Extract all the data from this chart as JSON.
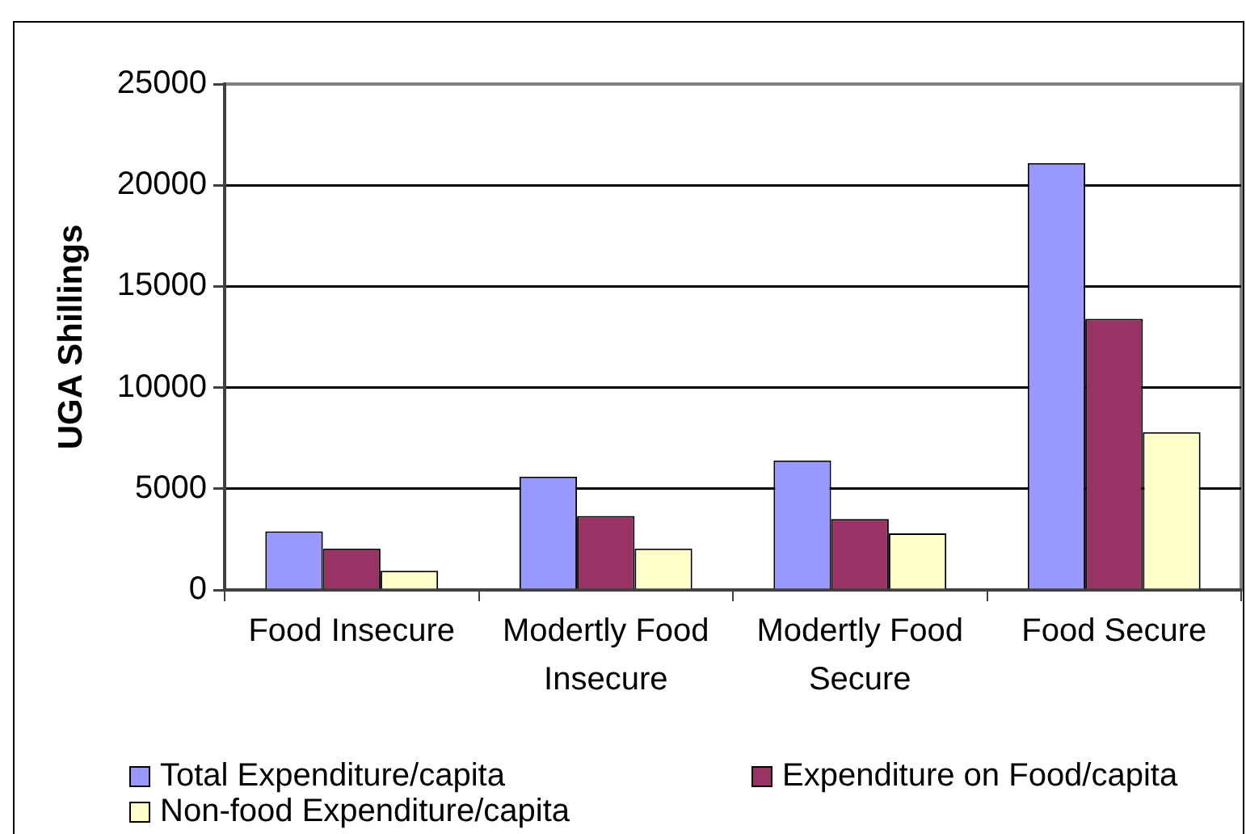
{
  "chart_data": {
    "type": "bar",
    "ylabel": "UGA Shillings",
    "categories": [
      "Food Insecure",
      "Modertly Food Insecure",
      "Modertly Food Secure",
      "Food Secure"
    ],
    "series": [
      {
        "name": "Total Expenditure/capita",
        "color": "#9999ff",
        "values": [
          2900,
          5600,
          6400,
          21100
        ]
      },
      {
        "name": "Expenditure on Food/capita",
        "color": "#993366",
        "values": [
          2050,
          3650,
          3500,
          13400
        ]
      },
      {
        "name": "Non-food Expenditure/capita",
        "color": "#ffffcc",
        "values": [
          950,
          2050,
          2800,
          7800
        ]
      }
    ],
    "ylim": [
      0,
      25000
    ],
    "yticks": [
      0,
      5000,
      10000,
      15000,
      20000,
      25000
    ],
    "grid": "y",
    "legend": "bottom"
  }
}
